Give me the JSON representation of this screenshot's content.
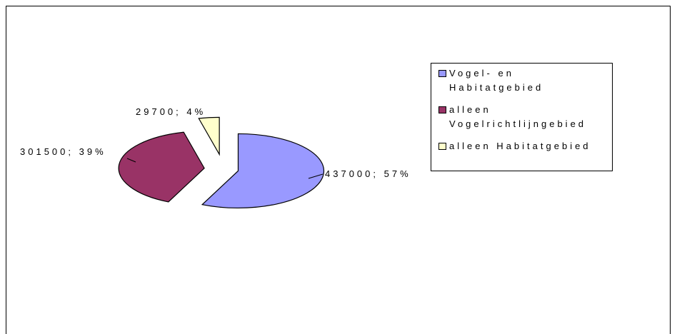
{
  "chart_data": {
    "type": "pie",
    "categories": [
      "Vogel- en Habitatgebied",
      "alleen Vogelrichtlijngebied",
      "alleen Habitatgebied"
    ],
    "values": [
      437000,
      301500,
      29700
    ],
    "value_labels": [
      "437000; 57%",
      "301500; 39%",
      "29700; 4%"
    ],
    "colors": [
      "#9999ff",
      "#993366",
      "#ffffcc"
    ],
    "legend": "right"
  }
}
